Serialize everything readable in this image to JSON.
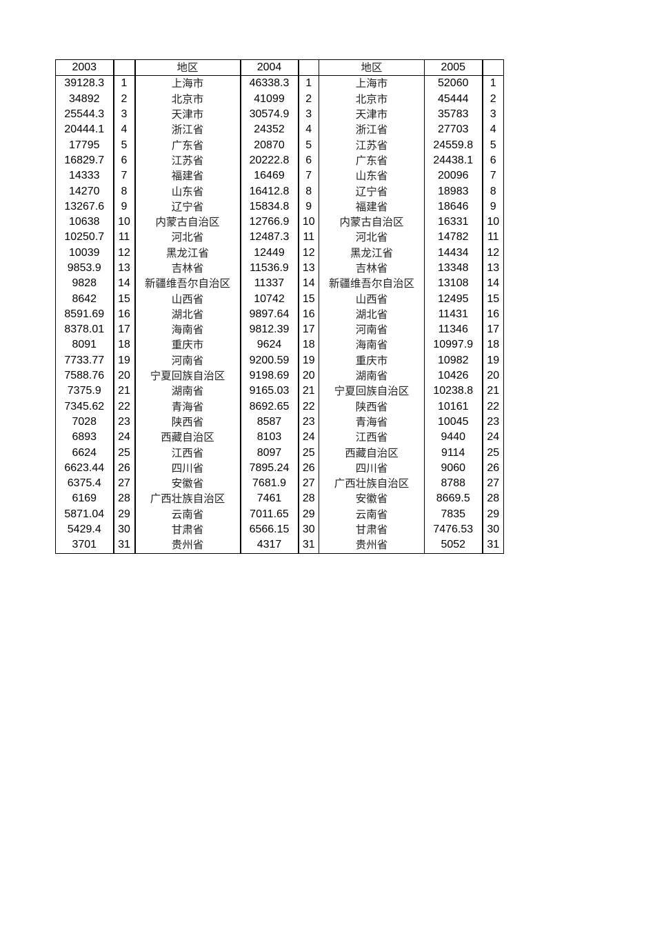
{
  "header": [
    "2003",
    "",
    "地区",
    "2004",
    "",
    "地区",
    "2005",
    ""
  ],
  "rows": [
    [
      "39128.3",
      "1",
      "上海市",
      "46338.3",
      "1",
      "上海市",
      "52060",
      "1"
    ],
    [
      "34892",
      "2",
      "北京市",
      "41099",
      "2",
      "北京市",
      "45444",
      "2"
    ],
    [
      "25544.3",
      "3",
      "天津市",
      "30574.9",
      "3",
      "天津市",
      "35783",
      "3"
    ],
    [
      "20444.1",
      "4",
      "浙江省",
      "24352",
      "4",
      "浙江省",
      "27703",
      "4"
    ],
    [
      "17795",
      "5",
      "广东省",
      "20870",
      "5",
      "江苏省",
      "24559.8",
      "5"
    ],
    [
      "16829.7",
      "6",
      "江苏省",
      "20222.8",
      "6",
      "广东省",
      "24438.1",
      "6"
    ],
    [
      "14333",
      "7",
      "福建省",
      "16469",
      "7",
      "山东省",
      "20096",
      "7"
    ],
    [
      "14270",
      "8",
      "山东省",
      "16412.8",
      "8",
      "辽宁省",
      "18983",
      "8"
    ],
    [
      "13267.6",
      "9",
      "辽宁省",
      "15834.8",
      "9",
      "福建省",
      "18646",
      "9"
    ],
    [
      "10638",
      "10",
      "内蒙古自治区",
      "12766.9",
      "10",
      "内蒙古自治区",
      "16331",
      "10"
    ],
    [
      "10250.7",
      "11",
      "河北省",
      "12487.3",
      "11",
      "河北省",
      "14782",
      "11"
    ],
    [
      "10039",
      "12",
      "黑龙江省",
      "12449",
      "12",
      "黑龙江省",
      "14434",
      "12"
    ],
    [
      "9853.9",
      "13",
      "吉林省",
      "11536.9",
      "13",
      "吉林省",
      "13348",
      "13"
    ],
    [
      "9828",
      "14",
      "新疆维吾尔自治区",
      "11337",
      "14",
      "新疆维吾尔自治区",
      "13108",
      "14"
    ],
    [
      "8642",
      "15",
      "山西省",
      "10742",
      "15",
      "山西省",
      "12495",
      "15"
    ],
    [
      "8591.69",
      "16",
      "湖北省",
      "9897.64",
      "16",
      "湖北省",
      "11431",
      "16"
    ],
    [
      "8378.01",
      "17",
      "海南省",
      "9812.39",
      "17",
      "河南省",
      "11346",
      "17"
    ],
    [
      "8091",
      "18",
      "重庆市",
      "9624",
      "18",
      "海南省",
      "10997.9",
      "18"
    ],
    [
      "7733.77",
      "19",
      "河南省",
      "9200.59",
      "19",
      "重庆市",
      "10982",
      "19"
    ],
    [
      "7588.76",
      "20",
      "宁夏回族自治区",
      "9198.69",
      "20",
      "湖南省",
      "10426",
      "20"
    ],
    [
      "7375.9",
      "21",
      "湖南省",
      "9165.03",
      "21",
      "宁夏回族自治区",
      "10238.8",
      "21"
    ],
    [
      "7345.62",
      "22",
      "青海省",
      "8692.65",
      "22",
      "陕西省",
      "10161",
      "22"
    ],
    [
      "7028",
      "23",
      "陕西省",
      "8587",
      "23",
      "青海省",
      "10045",
      "23"
    ],
    [
      "6893",
      "24",
      "西藏自治区",
      "8103",
      "24",
      "江西省",
      "9440",
      "24"
    ],
    [
      "6624",
      "25",
      "江西省",
      "8097",
      "25",
      "西藏自治区",
      "9114",
      "25"
    ],
    [
      "6623.44",
      "26",
      "四川省",
      "7895.24",
      "26",
      "四川省",
      "9060",
      "26"
    ],
    [
      "6375.4",
      "27",
      "安徽省",
      "7681.9",
      "27",
      "广西壮族自治区",
      "8788",
      "27"
    ],
    [
      "6169",
      "28",
      "广西壮族自治区",
      "7461",
      "28",
      "安徽省",
      "8669.5",
      "28"
    ],
    [
      "5871.04",
      "29",
      "云南省",
      "7011.65",
      "29",
      "云南省",
      "7835",
      "29"
    ],
    [
      "5429.4",
      "30",
      "甘肃省",
      "6566.15",
      "30",
      "甘肃省",
      "7476.53",
      "30"
    ],
    [
      "3701",
      "31",
      "贵州省",
      "4317",
      "31",
      "贵州省",
      "5052",
      "31"
    ]
  ]
}
